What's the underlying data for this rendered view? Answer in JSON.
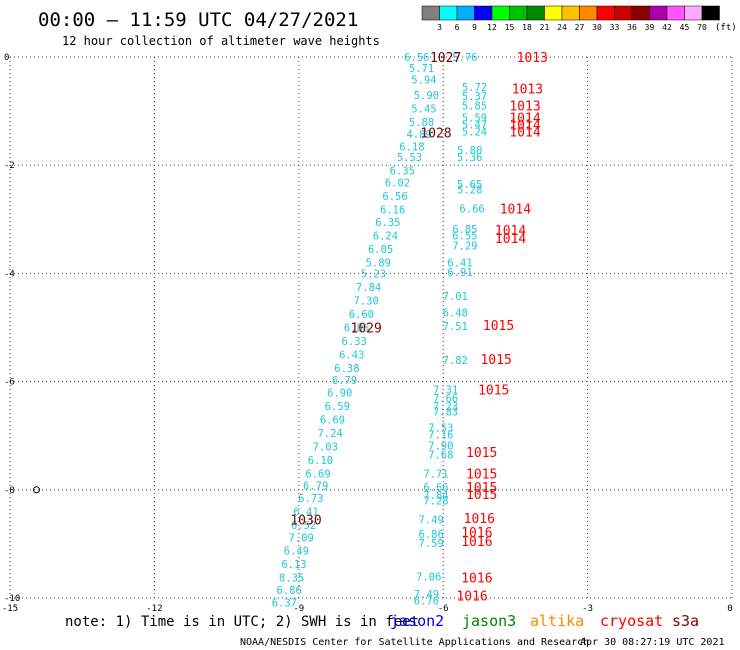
{
  "header": {
    "title": "00:00 – 11:59 UTC 04/27/2021",
    "subtitle": "12 hour collection of altimeter wave heights"
  },
  "colorbar": {
    "unit_label": "(ft)",
    "ticks": [
      "3",
      "6",
      "9",
      "12",
      "15",
      "18",
      "21",
      "24",
      "27",
      "30",
      "33",
      "36",
      "39",
      "42",
      "45",
      "70"
    ],
    "colors": [
      "#808080",
      "#00ffff",
      "#00b0ff",
      "#0000ff",
      "#00ff00",
      "#00c000",
      "#008800",
      "#ffff00",
      "#ffc000",
      "#ff8800",
      "#ff0000",
      "#cc0000",
      "#880000",
      "#aa00aa",
      "#ff55ff",
      "#ffaaff",
      "#000000"
    ]
  },
  "footer": {
    "note": "note:  1) Time is in UTC; 2) SWH is in feet",
    "satellites": [
      {
        "name": "jason2",
        "color": "#0000ff"
      },
      {
        "name": "jason3",
        "color": "#008800"
      },
      {
        "name": "altika",
        "color": "#ff8800"
      },
      {
        "name": "cryosat",
        "color": "#ff0000"
      },
      {
        "name": "s3a",
        "color": "#880000"
      }
    ],
    "credit": "NOAA/NESDIS Center for Satellite Applications and Research",
    "timestamp": "Apr 30 08:27:19 UTC 2021"
  },
  "chart_data": {
    "type": "scatter",
    "xlim": [
      -15,
      0
    ],
    "ylim": [
      -10,
      0
    ],
    "x_ticks": [
      -15,
      -12,
      -9,
      -6,
      -3,
      0
    ],
    "y_ticks": [
      0,
      -2,
      -4,
      -6,
      -8,
      -10
    ],
    "grid": true,
    "wave_heights": [
      {
        "x": -6.55,
        "y": 0.0,
        "v": "6.56"
      },
      {
        "x": -6.45,
        "y": -0.2,
        "v": "5.71"
      },
      {
        "x": -6.4,
        "y": -0.42,
        "v": "5.94"
      },
      {
        "x": -6.35,
        "y": -0.7,
        "v": "5.90"
      },
      {
        "x": -6.4,
        "y": -0.95,
        "v": "5.45"
      },
      {
        "x": -6.45,
        "y": -1.2,
        "v": "5.88"
      },
      {
        "x": -6.5,
        "y": -1.42,
        "v": "4.89"
      },
      {
        "x": -6.65,
        "y": -1.65,
        "v": "6.18"
      },
      {
        "x": -6.7,
        "y": -1.85,
        "v": "5.53"
      },
      {
        "x": -6.85,
        "y": -2.1,
        "v": "6.35"
      },
      {
        "x": -6.95,
        "y": -2.32,
        "v": "6.02"
      },
      {
        "x": -7.0,
        "y": -2.57,
        "v": "6.56"
      },
      {
        "x": -7.05,
        "y": -2.82,
        "v": "6.16"
      },
      {
        "x": -7.15,
        "y": -3.05,
        "v": "6.35"
      },
      {
        "x": -7.2,
        "y": -3.3,
        "v": "6.24"
      },
      {
        "x": -7.3,
        "y": -3.55,
        "v": "6.05"
      },
      {
        "x": -7.35,
        "y": -3.8,
        "v": "5.89"
      },
      {
        "x": -7.45,
        "y": -4.0,
        "v": "5.23"
      },
      {
        "x": -7.55,
        "y": -4.25,
        "v": "7.84"
      },
      {
        "x": -7.6,
        "y": -4.5,
        "v": "7.30"
      },
      {
        "x": -7.7,
        "y": -4.75,
        "v": "6.60"
      },
      {
        "x": -7.8,
        "y": -5.0,
        "v": "6.86"
      },
      {
        "x": -7.85,
        "y": -5.25,
        "v": "6.33"
      },
      {
        "x": -7.9,
        "y": -5.5,
        "v": "6.43"
      },
      {
        "x": -8.0,
        "y": -5.75,
        "v": "6.38"
      },
      {
        "x": -8.05,
        "y": -5.97,
        "v": "6.79"
      },
      {
        "x": -8.15,
        "y": -6.2,
        "v": "6.90"
      },
      {
        "x": -8.2,
        "y": -6.45,
        "v": "6.59"
      },
      {
        "x": -8.3,
        "y": -6.7,
        "v": "6.69"
      },
      {
        "x": -8.35,
        "y": -6.95,
        "v": "7.24"
      },
      {
        "x": -8.45,
        "y": -7.2,
        "v": "7.03"
      },
      {
        "x": -8.55,
        "y": -7.45,
        "v": "6.10"
      },
      {
        "x": -8.6,
        "y": -7.7,
        "v": "6.69"
      },
      {
        "x": -8.65,
        "y": -7.92,
        "v": "6.79"
      },
      {
        "x": -8.75,
        "y": -8.15,
        "v": "6.73"
      },
      {
        "x": -8.85,
        "y": -8.4,
        "v": "6.41"
      },
      {
        "x": -8.9,
        "y": -8.65,
        "v": "6.52"
      },
      {
        "x": -8.95,
        "y": -8.88,
        "v": "7.09"
      },
      {
        "x": -9.05,
        "y": -9.12,
        "v": "6.49"
      },
      {
        "x": -9.1,
        "y": -9.37,
        "v": "6.13"
      },
      {
        "x": -9.15,
        "y": -9.62,
        "v": "8.35"
      },
      {
        "x": -9.2,
        "y": -9.85,
        "v": "6.86"
      },
      {
        "x": -9.3,
        "y": -10.08,
        "v": "6.37"
      },
      {
        "x": -5.55,
        "y": 0.0,
        "v": "5.76"
      },
      {
        "x": -5.35,
        "y": -0.55,
        "v": "5.72"
      },
      {
        "x": -5.35,
        "y": -0.72,
        "v": "5.37"
      },
      {
        "x": -5.35,
        "y": -0.9,
        "v": "5.85"
      },
      {
        "x": -5.35,
        "y": -1.12,
        "v": "5.59"
      },
      {
        "x": -5.35,
        "y": -1.25,
        "v": "5.47"
      },
      {
        "x": -5.35,
        "y": -1.38,
        "v": "5.24"
      },
      {
        "x": -5.45,
        "y": -1.72,
        "v": "5.80"
      },
      {
        "x": -5.45,
        "y": -1.85,
        "v": "5.36"
      },
      {
        "x": -5.45,
        "y": -2.35,
        "v": "5.65"
      },
      {
        "x": -5.45,
        "y": -2.45,
        "v": "5.28"
      },
      {
        "x": -5.4,
        "y": -2.8,
        "v": "6.66"
      },
      {
        "x": -5.55,
        "y": -3.18,
        "v": "6.85"
      },
      {
        "x": -5.55,
        "y": -3.3,
        "v": "6.55"
      },
      {
        "x": -5.55,
        "y": -3.48,
        "v": "7.29"
      },
      {
        "x": -5.65,
        "y": -3.8,
        "v": "6.41"
      },
      {
        "x": -5.65,
        "y": -3.97,
        "v": "6.91"
      },
      {
        "x": -5.75,
        "y": -4.42,
        "v": "7.01"
      },
      {
        "x": -5.75,
        "y": -4.72,
        "v": "6.48"
      },
      {
        "x": -5.75,
        "y": -4.97,
        "v": "7.51"
      },
      {
        "x": -5.75,
        "y": -5.6,
        "v": "7.82"
      },
      {
        "x": -5.95,
        "y": -6.15,
        "v": "7.31"
      },
      {
        "x": -5.95,
        "y": -6.3,
        "v": "7.66"
      },
      {
        "x": -5.95,
        "y": -6.45,
        "v": "7.23"
      },
      {
        "x": -5.95,
        "y": -6.55,
        "v": "7.83"
      },
      {
        "x": -6.05,
        "y": -6.85,
        "v": "7.53"
      },
      {
        "x": -6.05,
        "y": -6.98,
        "v": "7.16"
      },
      {
        "x": -6.05,
        "y": -7.18,
        "v": "7.90"
      },
      {
        "x": -6.05,
        "y": -7.35,
        "v": "7.68"
      },
      {
        "x": -6.15,
        "y": -7.7,
        "v": "7.71"
      },
      {
        "x": -6.15,
        "y": -7.95,
        "v": "6.66"
      },
      {
        "x": -6.15,
        "y": -8.1,
        "v": "7.84"
      },
      {
        "x": -6.15,
        "y": -8.2,
        "v": "7.28"
      },
      {
        "x": -6.25,
        "y": -8.55,
        "v": "7.49"
      },
      {
        "x": -6.25,
        "y": -8.82,
        "v": "6.86"
      },
      {
        "x": -6.25,
        "y": -8.98,
        "v": "7.59"
      },
      {
        "x": -6.3,
        "y": -9.6,
        "v": "7.06"
      },
      {
        "x": -6.35,
        "y": -9.93,
        "v": "7.49"
      },
      {
        "x": -6.35,
        "y": -10.05,
        "v": "6.76"
      }
    ],
    "pressures": [
      {
        "x": -5.95,
        "y": 0.0,
        "v": "1027",
        "s": "high"
      },
      {
        "x": -4.15,
        "y": 0.0,
        "v": "1013",
        "s": "low"
      },
      {
        "x": -4.25,
        "y": -0.58,
        "v": "1013",
        "s": "low"
      },
      {
        "x": -4.3,
        "y": -0.9,
        "v": "1013",
        "s": "low"
      },
      {
        "x": -4.3,
        "y": -1.12,
        "v": "1014",
        "s": "low"
      },
      {
        "x": -4.3,
        "y": -1.25,
        "v": "1014",
        "s": "low"
      },
      {
        "x": -4.3,
        "y": -1.38,
        "v": "1014",
        "s": "low"
      },
      {
        "x": -6.15,
        "y": -1.4,
        "v": "1028",
        "s": "high"
      },
      {
        "x": -4.5,
        "y": -2.8,
        "v": "1014",
        "s": "low"
      },
      {
        "x": -4.6,
        "y": -3.2,
        "v": "1014",
        "s": "low"
      },
      {
        "x": -4.6,
        "y": -3.35,
        "v": "1014",
        "s": "low"
      },
      {
        "x": -7.6,
        "y": -5.0,
        "v": "1029",
        "s": "high"
      },
      {
        "x": -4.85,
        "y": -4.95,
        "v": "1015",
        "s": "low"
      },
      {
        "x": -4.9,
        "y": -5.58,
        "v": "1015",
        "s": "low"
      },
      {
        "x": -4.95,
        "y": -6.15,
        "v": "1015",
        "s": "low"
      },
      {
        "x": -5.2,
        "y": -7.3,
        "v": "1015",
        "s": "low"
      },
      {
        "x": -5.2,
        "y": -7.7,
        "v": "1015",
        "s": "low"
      },
      {
        "x": -5.2,
        "y": -7.95,
        "v": "1015",
        "s": "low"
      },
      {
        "x": -5.2,
        "y": -8.08,
        "v": "1015",
        "s": "low"
      },
      {
        "x": -8.85,
        "y": -8.55,
        "v": "1030",
        "s": "high"
      },
      {
        "x": -5.25,
        "y": -8.52,
        "v": "1016",
        "s": "low"
      },
      {
        "x": -5.3,
        "y": -8.78,
        "v": "1016",
        "s": "low"
      },
      {
        "x": -5.3,
        "y": -8.95,
        "v": "1016",
        "s": "low"
      },
      {
        "x": -5.3,
        "y": -9.62,
        "v": "1016",
        "s": "low"
      },
      {
        "x": -5.4,
        "y": -9.95,
        "v": "1016",
        "s": "low"
      }
    ],
    "symbols": [
      {
        "x": -14.45,
        "y": -8.0,
        "v": "circle"
      }
    ],
    "colors": {
      "wave": "#1ec8d8",
      "high": "#7a0000",
      "low": "#ff0000",
      "grid": "#444444"
    }
  }
}
